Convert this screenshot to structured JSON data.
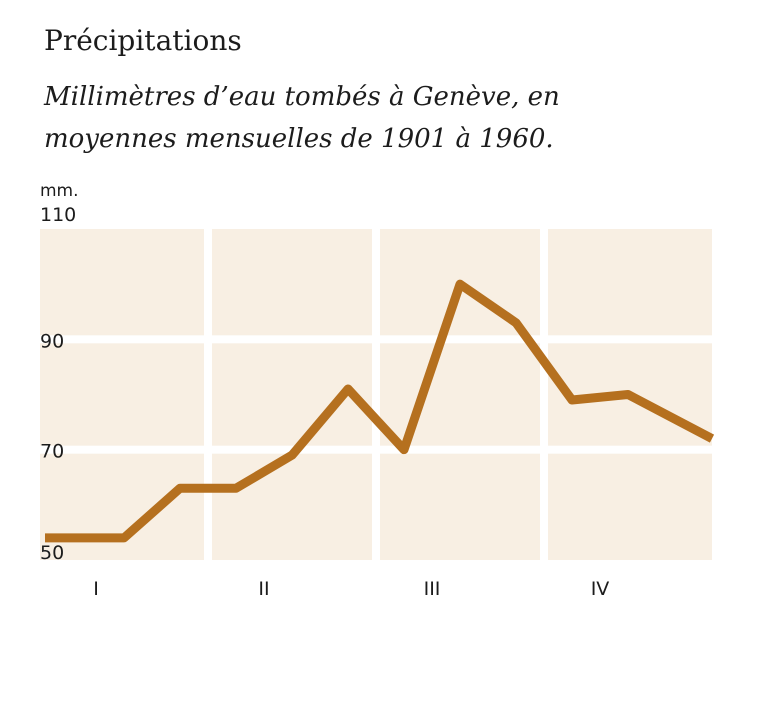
{
  "title": "Précipitations",
  "subtitle": "Millimètres d’eau tombés à Genève, en moyennes mensuelles de 1901 à 1960.",
  "chart_data": {
    "type": "line",
    "title": "Précipitations",
    "subtitle": "Millimètres d’eau tombés à Genève, en moyennes mensuelles de 1901 à 1960.",
    "y_unit": "mm.",
    "ylim": [
      50,
      110
    ],
    "y_ticks": [
      50,
      70,
      90,
      110
    ],
    "x": [
      1,
      2,
      3,
      4,
      5,
      6,
      7,
      8,
      9,
      10,
      11,
      12
    ],
    "x_tick_labels": [
      "I",
      "II",
      "III",
      "IV"
    ],
    "x_tick_positions": [
      1.5,
      4.5,
      7.5,
      10.5
    ],
    "series": [
      {
        "values": [
          54,
          54,
          63,
          63,
          69,
          81,
          70,
          100,
          93,
          79,
          80,
          72
        ]
      }
    ],
    "grid": true,
    "colors": {
      "line": "#b5701f",
      "panel": "#f8efe3",
      "grid": "#ffffff"
    }
  }
}
